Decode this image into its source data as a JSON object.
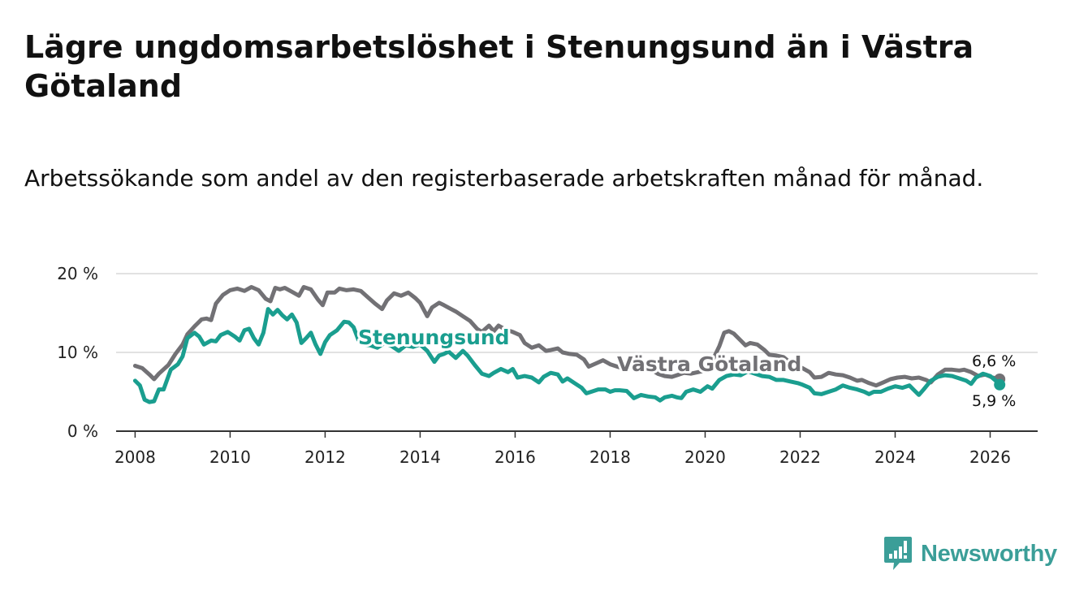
{
  "chart_data": {
    "type": "line",
    "title": "Lägre ungdomsarbetslöshet i Stenungsund än i Västra Götaland",
    "subtitle": "Arbetssökande som andel av den registerbaserade arbetskraften månad för månad.",
    "xlabel": "",
    "ylabel": "",
    "xlim": [
      2007.6,
      2027.0
    ],
    "ylim": [
      0,
      20
    ],
    "grid": true,
    "y_ticks": [
      0,
      10,
      20
    ],
    "y_tick_labels": [
      "0 %",
      "10 %",
      "20 %"
    ],
    "x_ticks": [
      2008,
      2010,
      2012,
      2014,
      2016,
      2018,
      2020,
      2022,
      2024,
      2026
    ],
    "x_tick_labels": [
      "2008",
      "2010",
      "2012",
      "2014",
      "2016",
      "2018",
      "2020",
      "2022",
      "2024",
      "2026"
    ],
    "series": [
      {
        "name": "Västra Götaland",
        "color": "#727175",
        "end_label": "6,6 %",
        "points": [
          [
            2008.0,
            8.3
          ],
          [
            2008.15,
            8.0
          ],
          [
            2008.3,
            7.2
          ],
          [
            2008.4,
            6.6
          ],
          [
            2008.5,
            7.3
          ],
          [
            2008.7,
            8.4
          ],
          [
            2008.85,
            9.8
          ],
          [
            2009.0,
            11.0
          ],
          [
            2009.1,
            12.3
          ],
          [
            2009.25,
            13.3
          ],
          [
            2009.4,
            14.2
          ],
          [
            2009.5,
            14.3
          ],
          [
            2009.6,
            14.1
          ],
          [
            2009.7,
            16.2
          ],
          [
            2009.85,
            17.3
          ],
          [
            2010.0,
            17.9
          ],
          [
            2010.15,
            18.1
          ],
          [
            2010.3,
            17.8
          ],
          [
            2010.45,
            18.3
          ],
          [
            2010.6,
            17.9
          ],
          [
            2010.75,
            16.8
          ],
          [
            2010.85,
            16.5
          ],
          [
            2010.95,
            18.2
          ],
          [
            2011.05,
            18.0
          ],
          [
            2011.15,
            18.2
          ],
          [
            2011.3,
            17.7
          ],
          [
            2011.45,
            17.2
          ],
          [
            2011.55,
            18.3
          ],
          [
            2011.7,
            18.0
          ],
          [
            2011.85,
            16.7
          ],
          [
            2011.95,
            16.0
          ],
          [
            2012.05,
            17.6
          ],
          [
            2012.2,
            17.6
          ],
          [
            2012.3,
            18.1
          ],
          [
            2012.45,
            17.9
          ],
          [
            2012.6,
            18.0
          ],
          [
            2012.75,
            17.8
          ],
          [
            2012.9,
            17.0
          ],
          [
            2013.05,
            16.2
          ],
          [
            2013.2,
            15.5
          ],
          [
            2013.3,
            16.6
          ],
          [
            2013.45,
            17.5
          ],
          [
            2013.6,
            17.2
          ],
          [
            2013.75,
            17.6
          ],
          [
            2013.9,
            16.9
          ],
          [
            2014.0,
            16.3
          ],
          [
            2014.15,
            14.6
          ],
          [
            2014.25,
            15.7
          ],
          [
            2014.4,
            16.3
          ],
          [
            2014.5,
            16.0
          ],
          [
            2014.65,
            15.5
          ],
          [
            2014.75,
            15.2
          ],
          [
            2014.9,
            14.6
          ],
          [
            2015.05,
            14.0
          ],
          [
            2015.2,
            13.0
          ],
          [
            2015.3,
            12.6
          ],
          [
            2015.45,
            13.4
          ],
          [
            2015.55,
            12.7
          ],
          [
            2015.65,
            13.4
          ],
          [
            2015.8,
            12.9
          ],
          [
            2015.95,
            12.6
          ],
          [
            2016.1,
            12.2
          ],
          [
            2016.2,
            11.2
          ],
          [
            2016.35,
            10.6
          ],
          [
            2016.5,
            10.9
          ],
          [
            2016.65,
            10.2
          ],
          [
            2016.75,
            10.3
          ],
          [
            2016.9,
            10.5
          ],
          [
            2017.0,
            10.0
          ],
          [
            2017.15,
            9.8
          ],
          [
            2017.3,
            9.7
          ],
          [
            2017.45,
            9.1
          ],
          [
            2017.55,
            8.2
          ],
          [
            2017.7,
            8.6
          ],
          [
            2017.85,
            9.0
          ],
          [
            2018.0,
            8.5
          ],
          [
            2018.15,
            8.2
          ],
          [
            2018.3,
            7.9
          ],
          [
            2018.45,
            8.2
          ],
          [
            2018.55,
            8.0
          ],
          [
            2018.7,
            8.3
          ],
          [
            2018.85,
            7.9
          ],
          [
            2019.0,
            7.3
          ],
          [
            2019.15,
            7.0
          ],
          [
            2019.3,
            6.9
          ],
          [
            2019.45,
            7.2
          ],
          [
            2019.55,
            7.4
          ],
          [
            2019.7,
            7.3
          ],
          [
            2019.85,
            7.5
          ],
          [
            2020.0,
            7.7
          ],
          [
            2020.15,
            8.9
          ],
          [
            2020.3,
            10.8
          ],
          [
            2020.4,
            12.5
          ],
          [
            2020.5,
            12.7
          ],
          [
            2020.6,
            12.4
          ],
          [
            2020.75,
            11.5
          ],
          [
            2020.85,
            10.9
          ],
          [
            2020.95,
            11.2
          ],
          [
            2021.1,
            11.0
          ],
          [
            2021.25,
            10.3
          ],
          [
            2021.35,
            9.7
          ],
          [
            2021.5,
            9.6
          ],
          [
            2021.65,
            9.4
          ],
          [
            2021.75,
            8.9
          ],
          [
            2021.9,
            8.3
          ],
          [
            2022.05,
            8.0
          ],
          [
            2022.2,
            7.5
          ],
          [
            2022.3,
            6.8
          ],
          [
            2022.45,
            6.9
          ],
          [
            2022.6,
            7.4
          ],
          [
            2022.75,
            7.2
          ],
          [
            2022.9,
            7.1
          ],
          [
            2023.05,
            6.8
          ],
          [
            2023.2,
            6.4
          ],
          [
            2023.3,
            6.5
          ],
          [
            2023.45,
            6.1
          ],
          [
            2023.6,
            5.8
          ],
          [
            2023.75,
            6.2
          ],
          [
            2023.9,
            6.6
          ],
          [
            2024.05,
            6.8
          ],
          [
            2024.2,
            6.9
          ],
          [
            2024.35,
            6.7
          ],
          [
            2024.5,
            6.8
          ],
          [
            2024.65,
            6.5
          ],
          [
            2024.75,
            6.2
          ],
          [
            2024.9,
            7.2
          ],
          [
            2025.05,
            7.8
          ],
          [
            2025.2,
            7.8
          ],
          [
            2025.35,
            7.7
          ],
          [
            2025.45,
            7.8
          ],
          [
            2025.6,
            7.5
          ],
          [
            2025.75,
            7.0
          ],
          [
            2025.9,
            7.2
          ],
          [
            2026.05,
            6.8
          ],
          [
            2026.2,
            6.6
          ]
        ]
      },
      {
        "name": "Stenungsund",
        "color": "#1a9e8f",
        "end_label": "5,9 %",
        "points": [
          [
            2008.0,
            6.4
          ],
          [
            2008.1,
            5.8
          ],
          [
            2008.2,
            4.0
          ],
          [
            2008.3,
            3.7
          ],
          [
            2008.4,
            3.8
          ],
          [
            2008.5,
            5.3
          ],
          [
            2008.6,
            5.3
          ],
          [
            2008.75,
            7.8
          ],
          [
            2008.9,
            8.5
          ],
          [
            2009.0,
            9.5
          ],
          [
            2009.1,
            11.8
          ],
          [
            2009.25,
            12.5
          ],
          [
            2009.35,
            12.0
          ],
          [
            2009.45,
            11.0
          ],
          [
            2009.6,
            11.5
          ],
          [
            2009.7,
            11.4
          ],
          [
            2009.8,
            12.2
          ],
          [
            2009.95,
            12.6
          ],
          [
            2010.1,
            12.0
          ],
          [
            2010.2,
            11.5
          ],
          [
            2010.3,
            12.8
          ],
          [
            2010.4,
            13.0
          ],
          [
            2010.5,
            11.8
          ],
          [
            2010.6,
            11.0
          ],
          [
            2010.7,
            12.5
          ],
          [
            2010.8,
            15.5
          ],
          [
            2010.9,
            14.8
          ],
          [
            2011.0,
            15.4
          ],
          [
            2011.1,
            14.7
          ],
          [
            2011.2,
            14.2
          ],
          [
            2011.3,
            14.8
          ],
          [
            2011.4,
            13.8
          ],
          [
            2011.5,
            11.2
          ],
          [
            2011.6,
            11.8
          ],
          [
            2011.7,
            12.5
          ],
          [
            2011.8,
            11.0
          ],
          [
            2011.9,
            9.8
          ],
          [
            2012.0,
            11.3
          ],
          [
            2012.1,
            12.2
          ],
          [
            2012.25,
            12.8
          ],
          [
            2012.4,
            13.9
          ],
          [
            2012.5,
            13.8
          ],
          [
            2012.6,
            13.2
          ],
          [
            2012.7,
            11.6
          ],
          [
            2012.8,
            11.0
          ],
          [
            2012.95,
            10.9
          ],
          [
            2013.1,
            10.6
          ],
          [
            2013.25,
            11.2
          ],
          [
            2013.4,
            10.8
          ],
          [
            2013.55,
            10.2
          ],
          [
            2013.7,
            10.9
          ],
          [
            2013.85,
            10.7
          ],
          [
            2014.0,
            11.0
          ],
          [
            2014.15,
            10.2
          ],
          [
            2014.3,
            8.8
          ],
          [
            2014.4,
            9.6
          ],
          [
            2014.5,
            9.8
          ],
          [
            2014.6,
            10.1
          ],
          [
            2014.75,
            9.3
          ],
          [
            2014.9,
            10.2
          ],
          [
            2015.0,
            9.6
          ],
          [
            2015.15,
            8.4
          ],
          [
            2015.3,
            7.3
          ],
          [
            2015.45,
            7.0
          ],
          [
            2015.55,
            7.4
          ],
          [
            2015.7,
            7.9
          ],
          [
            2015.85,
            7.5
          ],
          [
            2015.95,
            7.9
          ],
          [
            2016.05,
            6.8
          ],
          [
            2016.2,
            7.0
          ],
          [
            2016.35,
            6.8
          ],
          [
            2016.5,
            6.2
          ],
          [
            2016.6,
            6.9
          ],
          [
            2016.75,
            7.4
          ],
          [
            2016.9,
            7.2
          ],
          [
            2017.0,
            6.3
          ],
          [
            2017.1,
            6.7
          ],
          [
            2017.25,
            6.1
          ],
          [
            2017.4,
            5.5
          ],
          [
            2017.5,
            4.8
          ],
          [
            2017.6,
            5.0
          ],
          [
            2017.75,
            5.3
          ],
          [
            2017.9,
            5.3
          ],
          [
            2018.0,
            5.0
          ],
          [
            2018.1,
            5.2
          ],
          [
            2018.2,
            5.2
          ],
          [
            2018.35,
            5.1
          ],
          [
            2018.5,
            4.2
          ],
          [
            2018.65,
            4.6
          ],
          [
            2018.8,
            4.4
          ],
          [
            2018.95,
            4.3
          ],
          [
            2019.05,
            3.9
          ],
          [
            2019.15,
            4.3
          ],
          [
            2019.3,
            4.5
          ],
          [
            2019.4,
            4.3
          ],
          [
            2019.5,
            4.2
          ],
          [
            2019.6,
            5.0
          ],
          [
            2019.75,
            5.3
          ],
          [
            2019.9,
            5.0
          ],
          [
            2020.05,
            5.7
          ],
          [
            2020.15,
            5.4
          ],
          [
            2020.3,
            6.5
          ],
          [
            2020.45,
            7.0
          ],
          [
            2020.6,
            7.2
          ],
          [
            2020.75,
            7.1
          ],
          [
            2020.9,
            7.6
          ],
          [
            2021.05,
            7.3
          ],
          [
            2021.2,
            7.0
          ],
          [
            2021.35,
            6.9
          ],
          [
            2021.5,
            6.5
          ],
          [
            2021.65,
            6.5
          ],
          [
            2021.8,
            6.3
          ],
          [
            2021.95,
            6.1
          ],
          [
            2022.05,
            5.9
          ],
          [
            2022.2,
            5.5
          ],
          [
            2022.3,
            4.8
          ],
          [
            2022.45,
            4.7
          ],
          [
            2022.6,
            5.0
          ],
          [
            2022.75,
            5.3
          ],
          [
            2022.9,
            5.8
          ],
          [
            2023.05,
            5.5
          ],
          [
            2023.2,
            5.3
          ],
          [
            2023.35,
            5.0
          ],
          [
            2023.45,
            4.7
          ],
          [
            2023.55,
            5.0
          ],
          [
            2023.7,
            5.0
          ],
          [
            2023.85,
            5.4
          ],
          [
            2024.0,
            5.7
          ],
          [
            2024.15,
            5.5
          ],
          [
            2024.3,
            5.8
          ],
          [
            2024.4,
            5.2
          ],
          [
            2024.5,
            4.6
          ],
          [
            2024.6,
            5.3
          ],
          [
            2024.75,
            6.4
          ],
          [
            2024.9,
            6.9
          ],
          [
            2025.05,
            7.1
          ],
          [
            2025.2,
            7.0
          ],
          [
            2025.35,
            6.7
          ],
          [
            2025.5,
            6.4
          ],
          [
            2025.6,
            6.0
          ],
          [
            2025.7,
            6.8
          ],
          [
            2025.85,
            7.3
          ],
          [
            2026.0,
            7.0
          ],
          [
            2026.1,
            6.5
          ],
          [
            2026.2,
            5.9
          ]
        ]
      }
    ]
  },
  "brand": {
    "name": "Newsworthy",
    "color": "#3b9e98"
  }
}
